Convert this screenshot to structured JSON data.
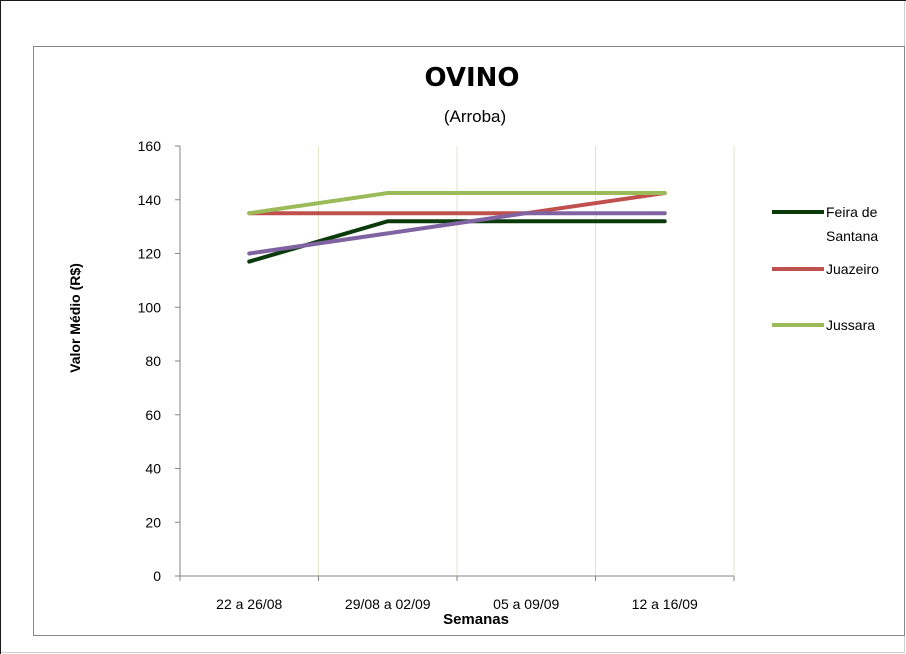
{
  "chart_data": {
    "type": "line",
    "title": "OVINO",
    "subtitle": "(Arroba)",
    "xlabel": "Semanas",
    "ylabel": "Valor Médio (R$)",
    "categories": [
      "22 a 26/08",
      "29/08 a 02/09",
      "05 a 09/09",
      "12 a 16/09"
    ],
    "ylim": [
      0,
      160
    ],
    "yticks": [
      0,
      20,
      40,
      60,
      80,
      100,
      120,
      140,
      160
    ],
    "grid": "vertical",
    "legend_position": "right",
    "series": [
      {
        "name": "Feira de Santana",
        "values": [
          117,
          132,
          132,
          132
        ],
        "color": "#0b3a0b"
      },
      {
        "name": "Juazeiro",
        "values": [
          135,
          135,
          135,
          142.5
        ],
        "color": "#c0504d"
      },
      {
        "name": "Jussara",
        "values": [
          135,
          142.5,
          142.5,
          142.5
        ],
        "color": "#9bbb59"
      },
      {
        "name": "",
        "values": [
          120,
          127.5,
          135,
          135
        ],
        "color": "#8064a2"
      }
    ]
  }
}
